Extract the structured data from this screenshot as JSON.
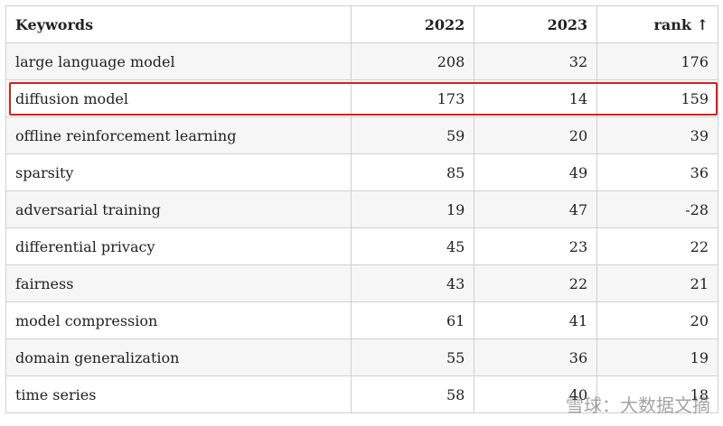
{
  "table": {
    "header": [
      "Keywords",
      "2022",
      "2023",
      "rank ↑"
    ],
    "rows": [
      [
        "large language model",
        208,
        32,
        176
      ],
      [
        "diffusion model",
        173,
        14,
        159
      ],
      [
        "offline reinforcement learning",
        59,
        20,
        39
      ],
      [
        "sparsity",
        85,
        49,
        36
      ],
      [
        "adversarial training",
        19,
        47,
        -28
      ],
      [
        "differential privacy",
        45,
        23,
        22
      ],
      [
        "fairness",
        43,
        22,
        21
      ],
      [
        "model compression",
        61,
        41,
        20
      ],
      [
        "domain generalization",
        55,
        36,
        19
      ],
      [
        "time series",
        58,
        40,
        18
      ]
    ],
    "highlight_row": 1
  },
  "watermark": "雪球：大数据文摘"
}
